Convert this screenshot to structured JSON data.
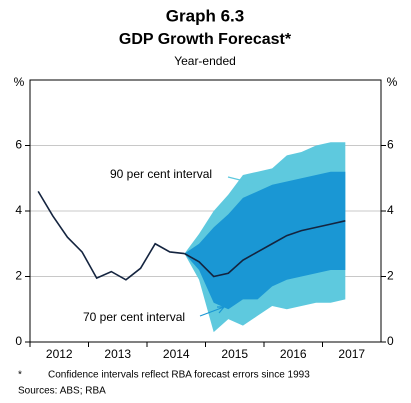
{
  "chart_data": {
    "type": "line",
    "title": "Graph 6.3",
    "subtitle": "GDP Growth Forecast*",
    "caption": "Year-ended",
    "y_unit": "%",
    "x": [
      2012.14,
      2012.39,
      2012.64,
      2012.89,
      2013.14,
      2013.39,
      2013.64,
      2013.89,
      2014.14,
      2014.39,
      2014.64,
      2014.89,
      2015.14,
      2015.39,
      2015.64,
      2015.89,
      2016.14,
      2016.39,
      2016.64,
      2016.89,
      2017.14,
      2017.39
    ],
    "series": [
      {
        "color": "#14243f",
        "values": [
          4.6,
          3.85,
          3.2,
          2.75,
          1.95,
          2.15,
          1.9,
          2.25,
          3.0,
          2.75,
          2.7,
          null,
          null,
          null,
          null,
          null,
          null,
          null,
          null,
          null,
          null,
          null
        ]
      },
      {
        "color": "#14243f",
        "values": [
          null,
          null,
          null,
          null,
          null,
          null,
          null,
          null,
          null,
          null,
          2.7,
          2.45,
          2.0,
          2.1,
          2.5,
          2.75,
          3.0,
          3.25,
          3.4,
          3.5,
          3.6,
          3.7
        ]
      }
    ],
    "bands": [
      {
        "label": "90 per cent interval",
        "color": "#5ec9de",
        "lower": [
          null,
          null,
          null,
          null,
          null,
          null,
          null,
          null,
          null,
          null,
          2.7,
          1.9,
          0.3,
          0.7,
          0.5,
          0.8,
          1.1,
          1.0,
          1.1,
          1.2,
          1.2,
          1.3
        ],
        "upper": [
          null,
          null,
          null,
          null,
          null,
          null,
          null,
          null,
          null,
          null,
          2.7,
          3.3,
          4.0,
          4.5,
          5.1,
          5.2,
          5.3,
          5.7,
          5.8,
          6.0,
          6.1,
          6.1
        ]
      },
      {
        "label": "70 per cent interval",
        "color": "#1a97d4",
        "lower": [
          null,
          null,
          null,
          null,
          null,
          null,
          null,
          null,
          null,
          null,
          2.7,
          2.2,
          1.2,
          1.0,
          1.3,
          1.3,
          1.7,
          1.9,
          2.0,
          2.1,
          2.2,
          2.2
        ],
        "upper": [
          null,
          null,
          null,
          null,
          null,
          null,
          null,
          null,
          null,
          null,
          2.7,
          3.0,
          3.5,
          3.9,
          4.4,
          4.6,
          4.8,
          4.9,
          5.0,
          5.1,
          5.2,
          5.2
        ]
      }
    ],
    "xlim": [
      2012,
      2018
    ],
    "xticks": [
      2012,
      2013,
      2014,
      2015,
      2016,
      2017
    ],
    "ylim": [
      0,
      8
    ],
    "yticks": [
      0,
      2,
      4,
      6
    ],
    "grid": true,
    "footnote_marker": "*",
    "footnote": "Confidence intervals reflect RBA forecast errors since 1993",
    "sources": "Sources: ABS; RBA"
  }
}
